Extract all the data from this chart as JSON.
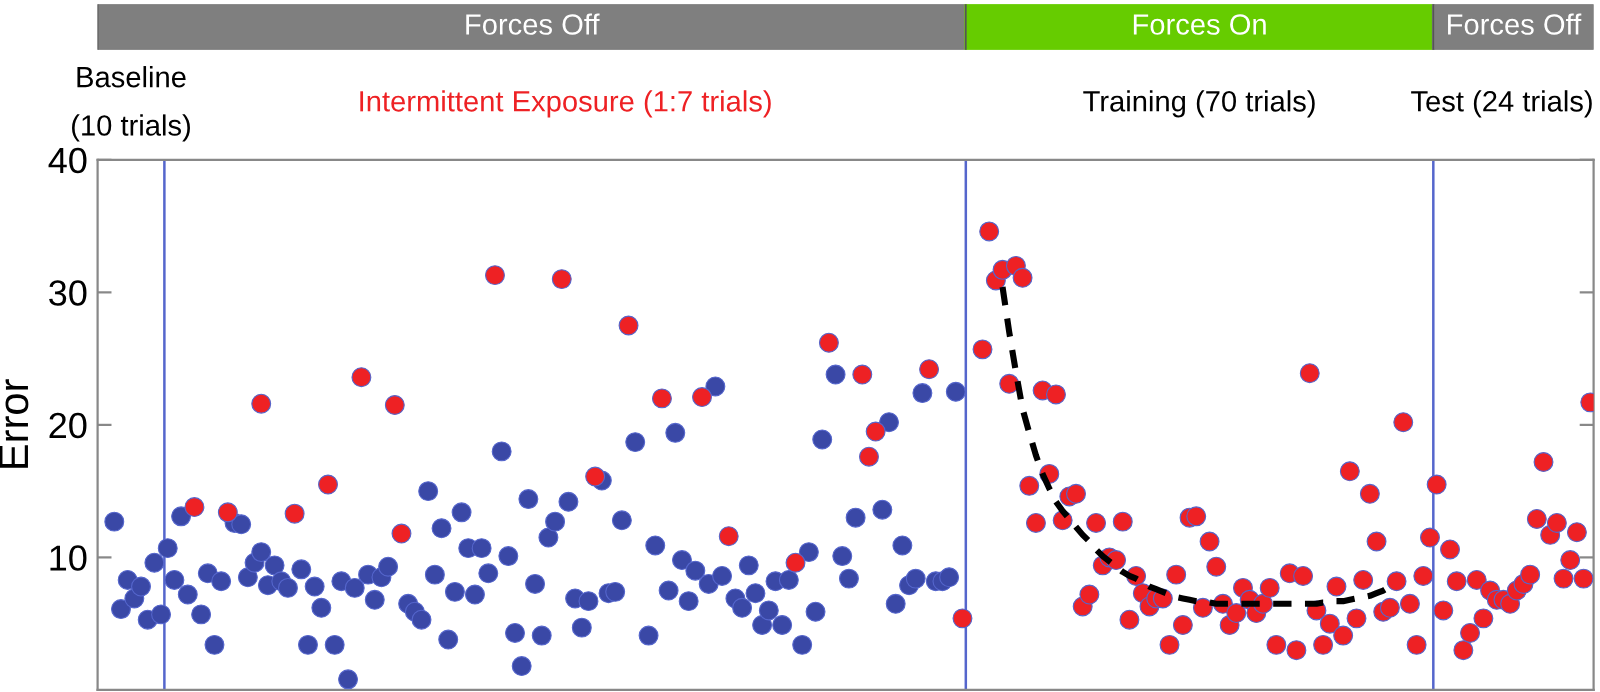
{
  "chart_data": {
    "type": "scatter",
    "ylabel": "Error",
    "categories": [
      null,
      null,
      null,
      null,
      null,
      null,
      null,
      null,
      null,
      null,
      null,
      null,
      null,
      null,
      null,
      null,
      null,
      null,
      null,
      null,
      null,
      null,
      null,
      null,
      null,
      null,
      null,
      null,
      null,
      null,
      null,
      null,
      null,
      null,
      null,
      null,
      null,
      null,
      null,
      null,
      null,
      null,
      null,
      null,
      null,
      null,
      null,
      null,
      null,
      null,
      null,
      null,
      null,
      null,
      null,
      null,
      null,
      null,
      null,
      null,
      null,
      null,
      null,
      null,
      null,
      null,
      null,
      null,
      null,
      null,
      null,
      null,
      null,
      null,
      null,
      null,
      null,
      null,
      null,
      null,
      null,
      null,
      null,
      null,
      null,
      null,
      null,
      null,
      null,
      null,
      null,
      null,
      null,
      null,
      null,
      null,
      null,
      null,
      null,
      null,
      null,
      null,
      null,
      null,
      null,
      null,
      null,
      null,
      null,
      null,
      null,
      null,
      null,
      null,
      null,
      null,
      null,
      null,
      null,
      null,
      null,
      null,
      null,
      null,
      null,
      null,
      null,
      null,
      null,
      null,
      null,
      null,
      null,
      null,
      null,
      null,
      null,
      null,
      null,
      null,
      null,
      null,
      null,
      null,
      null,
      null,
      null,
      null,
      null,
      null,
      null,
      null,
      null,
      null,
      null,
      null,
      null,
      null,
      null,
      null,
      null,
      null,
      null,
      null,
      null,
      null,
      null,
      null,
      null,
      null,
      null,
      null,
      null,
      null,
      null,
      null,
      null,
      null,
      null,
      null,
      null,
      null,
      null,
      null,
      null,
      null,
      null,
      null,
      null,
      null,
      null,
      null,
      null,
      null,
      null,
      null,
      null,
      null,
      null,
      null,
      null,
      null,
      null,
      null,
      null,
      null,
      null,
      null,
      null,
      null,
      null,
      null,
      null,
      null,
      null,
      null,
      null,
      null,
      null,
      null,
      null,
      null,
      null,
      null
    ],
    "series": [
      {
        "color": "#3a48a6",
        "values": [
          null,
          null,
          12.7,
          6.1,
          8.3,
          6.9,
          7.8,
          5.3,
          9.6,
          5.7,
          10.7,
          8.3,
          13.1,
          7.2,
          null,
          5.7,
          8.8,
          3.4,
          8.2,
          null,
          12.6,
          12.5,
          8.5,
          9.6,
          10.4,
          7.9,
          9.4,
          8.2,
          7.7,
          null,
          9.1,
          3.4,
          7.8,
          6.2,
          null,
          3.4,
          8.2,
          0.8,
          7.7,
          null,
          8.7,
          6.8,
          8.5,
          9.3,
          null,
          null,
          6.5,
          5.9,
          5.3,
          15.0,
          8.7,
          12.2,
          3.8,
          7.4,
          13.4,
          10.7,
          7.2,
          10.7,
          8.8,
          null,
          18.0,
          10.1,
          4.3,
          1.8,
          14.4,
          8.0,
          4.1,
          11.5,
          12.7,
          null,
          14.2,
          6.9,
          4.7,
          6.7,
          null,
          15.8,
          7.3,
          7.4,
          12.8,
          null,
          18.7,
          null,
          4.1,
          10.9,
          null,
          7.5,
          19.4,
          9.8,
          6.7,
          9.0,
          null,
          8.0,
          22.9,
          8.6,
          null,
          6.9,
          6.2,
          9.4,
          7.3,
          4.9,
          6.0,
          8.2,
          4.9,
          8.3,
          null,
          3.4,
          10.4,
          5.9,
          18.9,
          null,
          23.8,
          10.1,
          8.4,
          13.0,
          null,
          null,
          null,
          13.6,
          20.2,
          6.5,
          10.9,
          7.9,
          8.4,
          22.4,
          null,
          8.2,
          8.2,
          8.5,
          22.5,
          null,
          null,
          null,
          null,
          null,
          null,
          null,
          null,
          null,
          null,
          null,
          null,
          null,
          null,
          null,
          null,
          null,
          null,
          null,
          null,
          null,
          null,
          null,
          null,
          null,
          null,
          null,
          null,
          null,
          null,
          null,
          null,
          null,
          null,
          null,
          null,
          null,
          null,
          null,
          null,
          null,
          null,
          null,
          null,
          null,
          null,
          null,
          null,
          null,
          null,
          null,
          null,
          null,
          null,
          null,
          null,
          null,
          null,
          null,
          null,
          null,
          null,
          null,
          null,
          null,
          null,
          null,
          null,
          null,
          null,
          null,
          null,
          null,
          null,
          null,
          null,
          null,
          null,
          null,
          null,
          null,
          null,
          null,
          null,
          null,
          null,
          null,
          null,
          null,
          null,
          null,
          null,
          null,
          null,
          null
        ]
      },
      {
        "color": "#ee2124",
        "values": [
          null,
          null,
          null,
          null,
          null,
          null,
          null,
          null,
          null,
          null,
          null,
          null,
          null,
          null,
          13.8,
          null,
          null,
          null,
          null,
          13.4,
          null,
          null,
          null,
          null,
          21.6,
          null,
          null,
          null,
          null,
          13.3,
          null,
          null,
          null,
          null,
          15.5,
          null,
          null,
          null,
          null,
          23.6,
          null,
          null,
          null,
          null,
          21.5,
          11.8,
          null,
          null,
          null,
          null,
          null,
          null,
          null,
          null,
          null,
          null,
          null,
          null,
          null,
          31.3,
          null,
          null,
          null,
          null,
          null,
          null,
          null,
          null,
          null,
          31.0,
          null,
          null,
          null,
          null,
          16.1,
          null,
          null,
          null,
          null,
          27.5,
          null,
          null,
          null,
          null,
          22.0,
          null,
          null,
          null,
          null,
          null,
          22.1,
          null,
          null,
          null,
          11.6,
          null,
          null,
          null,
          null,
          null,
          null,
          null,
          null,
          null,
          9.6,
          null,
          null,
          null,
          null,
          26.2,
          null,
          null,
          null,
          null,
          23.8,
          17.6,
          19.5,
          null,
          null,
          null,
          null,
          null,
          null,
          null,
          24.2,
          null,
          null,
          null,
          null,
          5.4,
          null,
          null,
          25.7,
          34.6,
          30.9,
          31.7,
          23.1,
          32.0,
          31.1,
          15.4,
          12.6,
          22.6,
          16.3,
          22.3,
          12.8,
          14.6,
          14.8,
          6.3,
          7.2,
          12.6,
          9.4,
          10.0,
          9.8,
          12.7,
          5.3,
          8.6,
          7.3,
          6.3,
          6.9,
          6.9,
          3.4,
          8.7,
          4.9,
          13.0,
          13.1,
          6.2,
          11.2,
          9.3,
          6.5,
          4.9,
          5.8,
          7.7,
          6.8,
          5.8,
          6.5,
          7.7,
          3.4,
          null,
          8.8,
          3.0,
          8.6,
          23.9,
          6.0,
          3.4,
          5.0,
          7.8,
          4.1,
          16.5,
          5.4,
          8.3,
          14.8,
          11.2,
          5.9,
          6.2,
          8.2,
          20.2,
          6.5,
          3.4,
          8.6,
          11.5,
          15.5,
          6.0,
          10.6,
          8.2,
          3.0,
          4.3,
          8.3,
          5.4,
          7.5,
          6.8,
          6.8,
          6.5,
          7.5,
          8.0,
          8.7,
          12.9,
          17.2,
          11.7,
          12.6,
          8.4,
          9.8,
          11.9,
          8.4,
          21.7
        ]
      },
      {
        "type": "line",
        "color": "#000000",
        "line_style": "dashed",
        "marker": "none",
        "values": [
          null,
          null,
          null,
          null,
          null,
          null,
          null,
          null,
          null,
          null,
          null,
          null,
          null,
          null,
          null,
          null,
          null,
          null,
          null,
          null,
          null,
          null,
          null,
          null,
          null,
          null,
          null,
          null,
          null,
          null,
          null,
          null,
          null,
          null,
          null,
          null,
          null,
          null,
          null,
          null,
          null,
          null,
          null,
          null,
          null,
          null,
          null,
          null,
          null,
          null,
          null,
          null,
          null,
          null,
          null,
          null,
          null,
          null,
          null,
          null,
          null,
          null,
          null,
          null,
          null,
          null,
          null,
          null,
          null,
          null,
          null,
          null,
          null,
          null,
          null,
          null,
          null,
          null,
          null,
          null,
          null,
          null,
          null,
          null,
          null,
          null,
          null,
          null,
          null,
          null,
          null,
          null,
          null,
          null,
          null,
          null,
          null,
          null,
          null,
          null,
          null,
          null,
          null,
          null,
          null,
          null,
          null,
          null,
          null,
          null,
          null,
          null,
          null,
          null,
          null,
          null,
          null,
          null,
          null,
          null,
          null,
          null,
          null,
          null,
          null,
          null,
          null,
          null,
          null,
          null,
          null,
          null,
          null,
          null,
          null,
          30.4,
          27.0,
          24.0,
          21.2,
          19.4,
          17.7,
          16.3,
          15.2,
          14.2,
          13.5,
          12.9,
          12.3,
          11.7,
          11.2,
          10.6,
          10.1,
          9.7,
          9.3,
          8.9,
          8.6,
          8.4,
          8.1,
          7.8,
          7.6,
          7.4,
          7.2,
          7.0,
          6.9,
          6.8,
          6.7,
          6.6,
          6.6,
          6.5,
          6.5,
          6.5,
          6.5,
          6.5,
          6.5,
          6.5,
          6.5,
          6.5,
          6.5,
          6.5,
          6.5,
          6.5,
          6.5,
          6.5,
          6.5,
          6.6,
          6.6,
          6.7,
          6.7,
          6.8,
          6.9,
          7.0,
          7.1,
          7.3,
          7.5,
          7.8,
          null,
          null,
          null,
          null,
          null,
          null,
          null,
          null,
          null,
          null,
          null,
          null,
          null,
          null,
          null,
          null,
          null,
          null,
          null,
          null,
          null,
          null,
          null,
          null,
          null,
          null,
          null,
          null,
          null,
          null
        ]
      }
    ],
    "marker": "circle",
    "ylim": [
      0,
      40
    ],
    "yticks": [
      10,
      20,
      30,
      40
    ],
    "tick_labels": "y",
    "grid": false,
    "legend": false,
    "annotations": [
      "Forces Off",
      "Forces On",
      "Forces Off",
      "Baseline\n(10 trials)",
      "Intermittent Exposure (1:7 trials)",
      "Training (70 trials)",
      "Test (24 trials)"
    ]
  }
}
